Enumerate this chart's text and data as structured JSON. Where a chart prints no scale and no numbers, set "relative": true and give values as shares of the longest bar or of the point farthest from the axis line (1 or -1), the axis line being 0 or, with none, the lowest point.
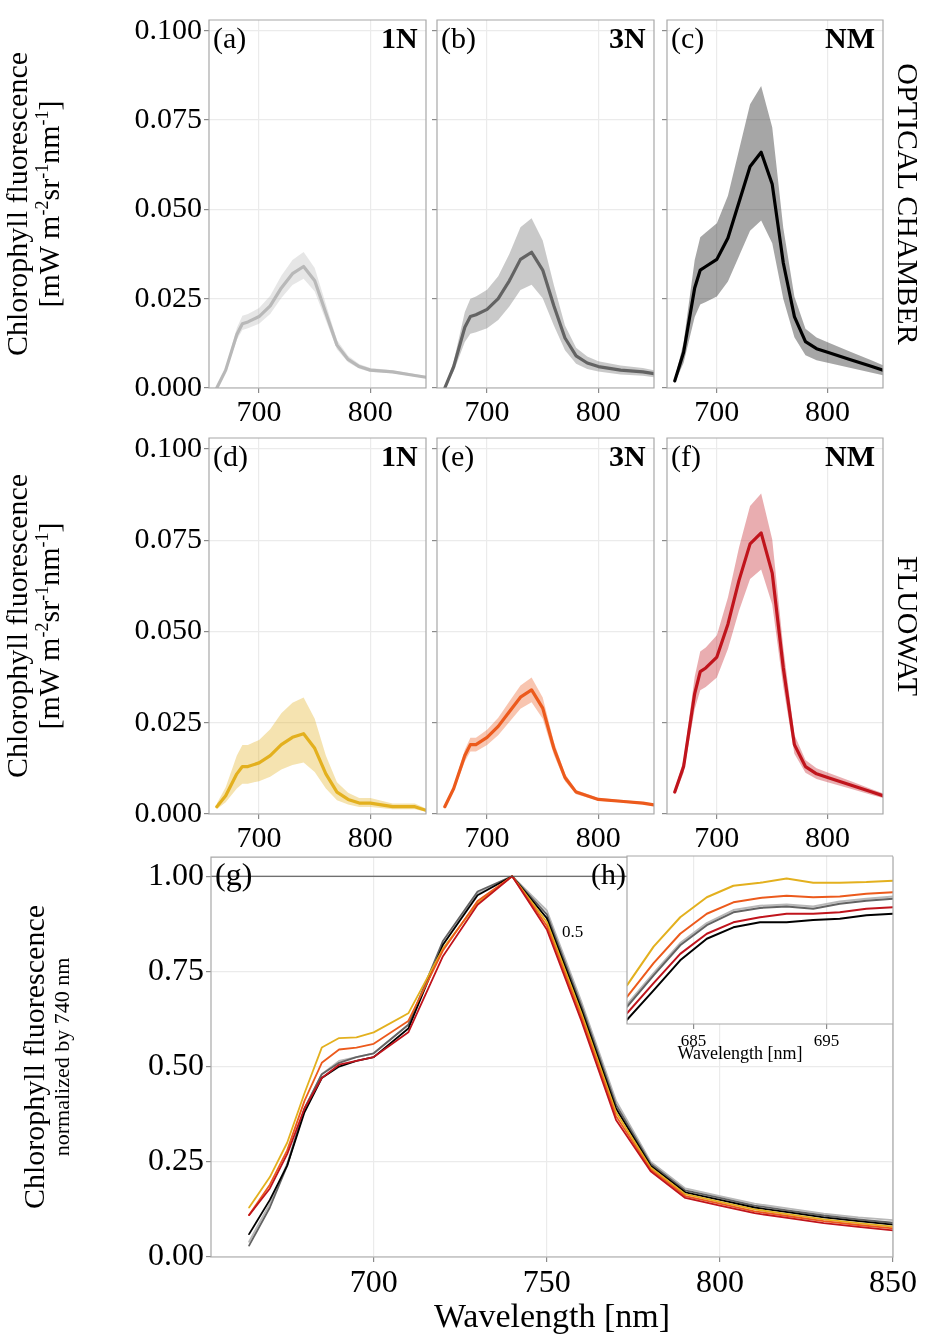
{
  "chart_data": [
    {
      "type": "line",
      "annotations": [
        "(a)",
        "1N"
      ],
      "ylabel": "Chlorophyll fluorescence\n[mW  m$^{-2}$sr$^{-1}$nm$^{-1}$]",
      "x": [
        662,
        670,
        680,
        685,
        690,
        700,
        710,
        720,
        730,
        740,
        750,
        760,
        770,
        780,
        790,
        800,
        820,
        840,
        850
      ],
      "xlim": [
        655,
        850
      ],
      "xticks": [
        700,
        800
      ],
      "ylim": [
        0,
        0.103
      ],
      "yticks": [
        {
          "value": 0,
          "label": "0.000"
        },
        {
          "value": 0.025,
          "label": "0.025"
        },
        {
          "value": 0.05,
          "label": "0.050"
        },
        {
          "value": 0.075,
          "label": "0.075"
        },
        {
          "value": 0.1,
          "label": "0.100"
        }
      ],
      "grid": true,
      "series": [
        {
          "color": "#b8b8b8",
          "values": [
            0,
            0.005,
            0.015,
            0.018,
            0.0185,
            0.02,
            0.023,
            0.028,
            0.032,
            0.034,
            0.03,
            0.021,
            0.012,
            0.008,
            0.006,
            0.005,
            0.0045,
            0.0035,
            0.003
          ],
          "upper": [
            0,
            0.0056,
            0.0168,
            0.0202,
            0.0207,
            0.0224,
            0.0258,
            0.0314,
            0.0358,
            0.0381,
            0.0336,
            0.0235,
            0.0134,
            0.009,
            0.0067,
            0.0056,
            0.005,
            0.0039,
            0.0034
          ],
          "lower": [
            0,
            0.0045,
            0.0135,
            0.0162,
            0.0167,
            0.018,
            0.0207,
            0.0252,
            0.0288,
            0.0306,
            0.027,
            0.0189,
            0.0108,
            0.0072,
            0.0054,
            0.0045,
            0.0041,
            0.0032,
            0.0027
          ]
        }
      ]
    },
    {
      "type": "line",
      "annotations": [
        "(b)",
        "3N"
      ],
      "tick_labels": "x",
      "x": [
        662,
        670,
        680,
        685,
        690,
        700,
        710,
        720,
        730,
        740,
        750,
        760,
        770,
        780,
        790,
        800,
        820,
        840,
        850
      ],
      "xlim": [
        655,
        850
      ],
      "xticks": [
        700,
        800
      ],
      "ylim": [
        0,
        0.103
      ],
      "yticks": [
        0,
        0.025,
        0.05,
        0.075,
        0.1
      ],
      "grid": true,
      "series": [
        {
          "color": "#636363",
          "values": [
            0,
            0.006,
            0.017,
            0.02,
            0.0205,
            0.022,
            0.025,
            0.03,
            0.036,
            0.038,
            0.033,
            0.023,
            0.014,
            0.009,
            0.007,
            0.006,
            0.005,
            0.0045,
            0.004
          ],
          "upper": [
            0,
            0.0075,
            0.0213,
            0.025,
            0.0256,
            0.0275,
            0.0313,
            0.0375,
            0.045,
            0.0475,
            0.0413,
            0.0288,
            0.0175,
            0.0113,
            0.0088,
            0.0075,
            0.0063,
            0.0056,
            0.005
          ],
          "lower": [
            0,
            0.0046,
            0.0129,
            0.0152,
            0.0156,
            0.0167,
            0.019,
            0.0228,
            0.0274,
            0.0289,
            0.0251,
            0.0175,
            0.0106,
            0.0068,
            0.0053,
            0.0046,
            0.0038,
            0.0034,
            0.003
          ]
        }
      ]
    },
    {
      "type": "line",
      "annotations": [
        "(c)",
        "NM",
        "OPTICAL CHAMBER"
      ],
      "tick_labels": "x",
      "x": [
        662,
        670,
        680,
        685,
        690,
        700,
        710,
        720,
        730,
        740,
        750,
        760,
        770,
        780,
        790,
        800,
        820,
        840,
        850
      ],
      "xlim": [
        655,
        850
      ],
      "xticks": [
        700,
        800
      ],
      "ylim": [
        0,
        0.103
      ],
      "yticks": [
        0,
        0.025,
        0.05,
        0.075,
        0.1
      ],
      "grid": true,
      "series": [
        {
          "color": "#000000",
          "values": [
            0.002,
            0.01,
            0.028,
            0.033,
            0.034,
            0.036,
            0.042,
            0.052,
            0.062,
            0.066,
            0.057,
            0.035,
            0.02,
            0.013,
            0.011,
            0.01,
            0.008,
            0.006,
            0.005
          ],
          "upper": [
            0.0026,
            0.0128,
            0.0358,
            0.0422,
            0.0435,
            0.0461,
            0.0538,
            0.0666,
            0.0794,
            0.0845,
            0.073,
            0.0448,
            0.0256,
            0.0166,
            0.0141,
            0.0128,
            0.0102,
            0.0077,
            0.0064
          ],
          "lower": [
            0.0014,
            0.0071,
            0.0199,
            0.0234,
            0.0241,
            0.0256,
            0.0298,
            0.0369,
            0.044,
            0.0469,
            0.0405,
            0.0249,
            0.0142,
            0.0092,
            0.0078,
            0.0071,
            0.0057,
            0.0043,
            0.0036
          ]
        }
      ]
    },
    {
      "type": "line",
      "annotations": [
        "(d)",
        "1N"
      ],
      "ylabel": "Chlorophyll fluorescence\n[mW  m$^{-2}$sr$^{-1}$nm$^{-1}$]",
      "x": [
        662,
        670,
        680,
        685,
        690,
        700,
        710,
        720,
        730,
        740,
        750,
        760,
        770,
        780,
        790,
        800,
        820,
        840,
        850
      ],
      "xlim": [
        655,
        850
      ],
      "xticks": [
        700,
        800
      ],
      "ylim": [
        0,
        0.103
      ],
      "yticks": [
        {
          "value": 0,
          "label": "0.000"
        },
        {
          "value": 0.025,
          "label": "0.025"
        },
        {
          "value": 0.05,
          "label": "0.050"
        },
        {
          "value": 0.075,
          "label": "0.075"
        },
        {
          "value": 0.1,
          "label": "0.100"
        }
      ],
      "grid": true,
      "series": [
        {
          "color": "#e3b01e",
          "values": [
            0.002,
            0.005,
            0.011,
            0.013,
            0.013,
            0.014,
            0.016,
            0.019,
            0.021,
            0.022,
            0.018,
            0.011,
            0.006,
            0.004,
            0.003,
            0.003,
            0.002,
            0.002,
            0.001
          ],
          "upper": [
            0.0029,
            0.0073,
            0.016,
            0.0189,
            0.0189,
            0.0203,
            0.0232,
            0.0276,
            0.0305,
            0.0319,
            0.0261,
            0.016,
            0.0087,
            0.0058,
            0.0044,
            0.0044,
            0.0029,
            0.0029,
            0.0015
          ],
          "lower": [
            0.0013,
            0.0032,
            0.007,
            0.0083,
            0.0083,
            0.009,
            0.0102,
            0.0122,
            0.0134,
            0.0141,
            0.0115,
            0.007,
            0.0038,
            0.0026,
            0.0019,
            0.0019,
            0.0013,
            0.0013,
            0.0006
          ]
        }
      ]
    },
    {
      "type": "line",
      "annotations": [
        "(e)",
        "3N"
      ],
      "tick_labels": "x",
      "x": [
        662,
        670,
        680,
        685,
        690,
        700,
        710,
        720,
        730,
        740,
        750,
        760,
        770,
        780,
        790,
        800,
        820,
        840,
        850
      ],
      "xlim": [
        655,
        850
      ],
      "xticks": [
        700,
        800
      ],
      "ylim": [
        0,
        0.103
      ],
      "yticks": [
        0,
        0.025,
        0.05,
        0.075,
        0.1
      ],
      "grid": true,
      "series": [
        {
          "color": "#ec5a1c",
          "values": [
            0.002,
            0.007,
            0.016,
            0.019,
            0.019,
            0.021,
            0.024,
            0.028,
            0.032,
            0.034,
            0.029,
            0.018,
            0.01,
            0.006,
            0.005,
            0.004,
            0.0035,
            0.003,
            0.0025
          ],
          "upper": [
            0.0022,
            0.0077,
            0.0176,
            0.0209,
            0.0209,
            0.0231,
            0.0264,
            0.0308,
            0.0352,
            0.0374,
            0.0319,
            0.0198,
            0.011,
            0.0066,
            0.0055,
            0.0044,
            0.0039,
            0.0033,
            0.0028
          ],
          "lower": [
            0.0018,
            0.0063,
            0.0144,
            0.0171,
            0.0171,
            0.0189,
            0.0216,
            0.0252,
            0.0288,
            0.0306,
            0.0261,
            0.0162,
            0.009,
            0.0054,
            0.0045,
            0.0036,
            0.0032,
            0.0027,
            0.0023
          ]
        }
      ]
    },
    {
      "type": "line",
      "annotations": [
        "(f)",
        "NM",
        "FLUOWAT"
      ],
      "tick_labels": "x",
      "x": [
        662,
        670,
        680,
        685,
        690,
        700,
        710,
        720,
        730,
        740,
        750,
        760,
        770,
        780,
        790,
        800,
        820,
        840,
        850
      ],
      "xlim": [
        655,
        850
      ],
      "xticks": [
        700,
        800
      ],
      "ylim": [
        0,
        0.103
      ],
      "yticks": [
        0,
        0.025,
        0.05,
        0.075,
        0.1
      ],
      "grid": true,
      "series": [
        {
          "color": "#c0141c",
          "values": [
            0.006,
            0.013,
            0.033,
            0.039,
            0.04,
            0.043,
            0.052,
            0.064,
            0.074,
            0.077,
            0.066,
            0.04,
            0.019,
            0.013,
            0.011,
            0.01,
            0.008,
            0.006,
            0.005
          ],
          "upper": [
            0.0068,
            0.0148,
            0.0376,
            0.0445,
            0.0456,
            0.049,
            0.0593,
            0.073,
            0.0844,
            0.0878,
            0.0752,
            0.0456,
            0.0217,
            0.0148,
            0.0125,
            0.0114,
            0.0091,
            0.0068,
            0.0057
          ],
          "lower": [
            0.0052,
            0.0113,
            0.0287,
            0.0339,
            0.0348,
            0.0374,
            0.0452,
            0.0557,
            0.0644,
            0.067,
            0.0574,
            0.0348,
            0.0165,
            0.0113,
            0.0096,
            0.0087,
            0.007,
            0.0052,
            0.0044
          ]
        }
      ]
    },
    {
      "type": "line",
      "annotations": [
        "(g)"
      ],
      "ylabel": "Chlorophyll fluorescence\nnormalized by 740 nm",
      "xlabel": "Wavelength [nm]",
      "x": [
        664,
        670,
        675,
        680,
        685,
        690,
        695,
        700,
        710,
        720,
        730,
        740,
        750,
        760,
        770,
        780,
        790,
        800,
        810,
        820,
        830,
        840,
        850
      ],
      "xlim": [
        653,
        850
      ],
      "xticks": [
        700,
        750,
        800,
        850
      ],
      "ylim": [
        0,
        1.05
      ],
      "yticks": [
        {
          "value": 0,
          "label": "0.00"
        },
        {
          "value": 0.25,
          "label": "0.25"
        },
        {
          "value": 0.5,
          "label": "0.50"
        },
        {
          "value": 0.75,
          "label": "0.75"
        },
        {
          "value": 1,
          "label": "1.00"
        }
      ],
      "grid": true,
      "ref_lines": [
        {
          "axis": "y",
          "value": 1,
          "color": "#444444"
        }
      ],
      "series": [
        {
          "color": "#b8b8b8",
          "values": [
            0.04,
            0.14,
            0.245,
            0.39,
            0.48,
            0.515,
            0.525,
            0.535,
            0.61,
            0.82,
            0.955,
            1.0,
            0.91,
            0.67,
            0.41,
            0.25,
            0.18,
            0.16,
            0.14,
            0.127,
            0.114,
            0.104,
            0.097
          ]
        },
        {
          "color": "#636363",
          "values": [
            0.03,
            0.13,
            0.24,
            0.39,
            0.48,
            0.51,
            0.525,
            0.535,
            0.61,
            0.83,
            0.96,
            1.0,
            0.9,
            0.66,
            0.4,
            0.245,
            0.175,
            0.155,
            0.135,
            0.122,
            0.109,
            0.099,
            0.09
          ]
        },
        {
          "color": "#000000",
          "values": [
            0.06,
            0.15,
            0.24,
            0.38,
            0.47,
            0.5,
            0.515,
            0.525,
            0.6,
            0.82,
            0.95,
            1.0,
            0.89,
            0.65,
            0.39,
            0.24,
            0.17,
            0.15,
            0.13,
            0.117,
            0.104,
            0.094,
            0.085
          ]
        },
        {
          "color": "#e3b01e",
          "values": [
            0.13,
            0.21,
            0.3,
            0.43,
            0.55,
            0.575,
            0.577,
            0.59,
            0.64,
            0.81,
            0.93,
            1.0,
            0.88,
            0.64,
            0.38,
            0.235,
            0.165,
            0.145,
            0.125,
            0.112,
            0.099,
            0.089,
            0.08
          ]
        },
        {
          "color": "#ec5a1c",
          "values": [
            0.11,
            0.19,
            0.28,
            0.41,
            0.51,
            0.545,
            0.55,
            0.56,
            0.62,
            0.805,
            0.935,
            1.0,
            0.87,
            0.63,
            0.37,
            0.23,
            0.16,
            0.14,
            0.12,
            0.107,
            0.094,
            0.084,
            0.075
          ]
        },
        {
          "color": "#c0141c",
          "values": [
            0.11,
            0.18,
            0.27,
            0.39,
            0.47,
            0.505,
            0.515,
            0.525,
            0.59,
            0.79,
            0.925,
            1.0,
            0.86,
            0.62,
            0.36,
            0.225,
            0.155,
            0.135,
            0.115,
            0.102,
            0.089,
            0.079,
            0.07
          ]
        }
      ]
    },
    {
      "type": "line",
      "relative": true,
      "annotations": [
        "(h)",
        "0.5"
      ],
      "xlabel": "Wavelength [nm]",
      "x": [
        680,
        682,
        684,
        686,
        688,
        690,
        692,
        694,
        696,
        698,
        700
      ],
      "xlim": [
        680,
        700
      ],
      "xticks": [
        685,
        695
      ],
      "grid": true,
      "series": [
        {
          "color": "#b8b8b8",
          "values": [
            0.107,
            0.33,
            0.543,
            0.685,
            0.777,
            0.807,
            0.817,
            0.802,
            0.838,
            0.858,
            0.873
          ]
        },
        {
          "color": "#636363",
          "values": [
            0.091,
            0.315,
            0.528,
            0.67,
            0.761,
            0.792,
            0.802,
            0.787,
            0.822,
            0.843,
            0.858
          ]
        },
        {
          "color": "#000000",
          "values": [
            0,
            0.208,
            0.421,
            0.574,
            0.655,
            0.69,
            0.69,
            0.706,
            0.716,
            0.741,
            0.751
          ]
        },
        {
          "color": "#e3b01e",
          "values": [
            0.244,
            0.518,
            0.726,
            0.868,
            0.949,
            0.97,
            1,
            0.97,
            0.97,
            0.975,
            0.985
          ]
        },
        {
          "color": "#ec5a1c",
          "values": [
            0.162,
            0.401,
            0.609,
            0.751,
            0.832,
            0.863,
            0.878,
            0.868,
            0.873,
            0.893,
            0.904
          ]
        },
        {
          "color": "#c0141c",
          "values": [
            0.046,
            0.259,
            0.467,
            0.609,
            0.69,
            0.726,
            0.751,
            0.751,
            0.761,
            0.787,
            0.797
          ]
        }
      ]
    }
  ]
}
